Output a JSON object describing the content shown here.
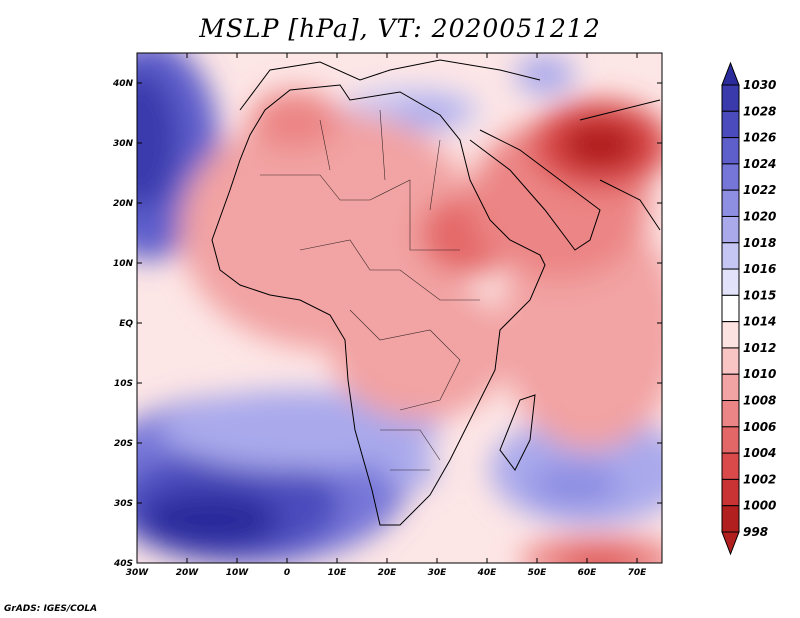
{
  "title": "MSLP [hPa], VT: 2020051212",
  "credit": "GrADS: IGES/COLA",
  "map": {
    "variable": "Mean sea level pressure",
    "units": "hPa",
    "valid_time": "2020051212",
    "lon_range": [
      -30,
      75
    ],
    "lat_range": [
      -40,
      45
    ],
    "x_ticks": [
      "30W",
      "20W",
      "10W",
      "0",
      "10E",
      "20E",
      "30E",
      "40E",
      "50E",
      "60E",
      "70E"
    ],
    "y_ticks": [
      "40N",
      "30N",
      "20N",
      "10N",
      "EQ",
      "10S",
      "20S",
      "30S",
      "40S"
    ]
  },
  "colorbar": {
    "levels": [
      "1030",
      "1028",
      "1026",
      "1024",
      "1022",
      "1020",
      "1018",
      "1016",
      "1015",
      "1014",
      "1012",
      "1010",
      "1008",
      "1006",
      "1004",
      "1002",
      "1000",
      "998"
    ],
    "colors": [
      "#2b2b9c",
      "#3a3aad",
      "#4b4bbd",
      "#5f5fcc",
      "#7676d8",
      "#8e8ee3",
      "#a9a9ec",
      "#c6c6f4",
      "#e2e2fb",
      "#ffffff",
      "#fde2e2",
      "#f8c4c4",
      "#f2a3a3",
      "#ec8585",
      "#e46767",
      "#db4a4a",
      "#c93333",
      "#b11f1f"
    ]
  }
}
